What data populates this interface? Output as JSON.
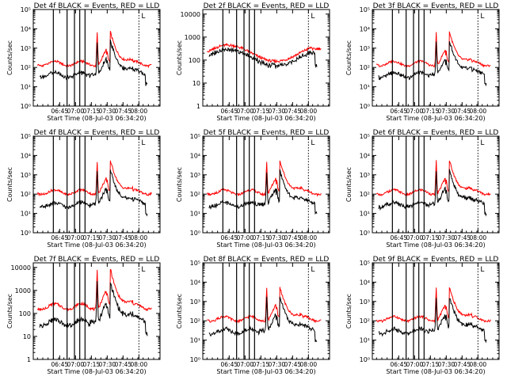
{
  "chart_data": [
    {
      "type": "line",
      "title": "Det 4f BLACK = Events, RED = LLD",
      "xlabel": "Start Time (08-Jul-03 06:34:20)",
      "ylabel": "Counts/sec",
      "ytick_labels": [
        "10⁰",
        "10¹",
        "10²",
        "10³",
        "10⁴",
        "10⁵"
      ],
      "ylim_exp": [
        0,
        5
      ],
      "xtick_labels": [
        "06:45",
        "07:00",
        "07:15",
        "07:30",
        "07:45",
        "08:00"
      ],
      "xlim_min": [
        -14,
        106
      ],
      "xtick_min": [
        11,
        26,
        41,
        56,
        71,
        86
      ],
      "marker_label": "L",
      "vlines_min": [
        5,
        18,
        25,
        30,
        35
      ],
      "dotted_min": [
        86
      ],
      "shape": "flare",
      "base": 2.2,
      "black_offset": 0.45
    },
    {
      "type": "line",
      "title": "Det 2f BLACK = Events, RED = LLD",
      "xlabel": "Start Time (08-Jul-03 06:34:20)",
      "ylabel": "Counts/sec",
      "ytick_labels": [
        "1",
        "10",
        "100",
        "1000",
        "10000"
      ],
      "ylim_exp": [
        0,
        4.2
      ],
      "xtick_labels": [
        "06:45",
        "07:00",
        "07:15",
        "07:30",
        "07:45",
        "08:00"
      ],
      "xlim_min": [
        -14,
        106
      ],
      "xtick_min": [
        11,
        26,
        41,
        56,
        71,
        86
      ],
      "marker_label": "L",
      "vlines_min": [
        5,
        18,
        25,
        30,
        35
      ],
      "dotted_min": [
        86
      ],
      "shape": "wave",
      "base": 2.3,
      "black_offset": 0.2
    },
    {
      "type": "line",
      "title": "Det 3f BLACK = Events, RED = LLD",
      "xlabel": "Start Time (08-Jul-03 06:34:20)",
      "ylabel": "Counts/sec",
      "ytick_labels": [
        "10⁰",
        "10¹",
        "10²",
        "10³",
        "10⁴",
        "10⁵"
      ],
      "ylim_exp": [
        0,
        5
      ],
      "xtick_labels": [
        "06:45",
        "07:00",
        "07:15",
        "07:30",
        "07:45",
        "08:00"
      ],
      "xlim_min": [
        -14,
        106
      ],
      "xtick_min": [
        11,
        26,
        41,
        56,
        71,
        86
      ],
      "marker_label": "L",
      "vlines_min": [
        5,
        18,
        25,
        30,
        35
      ],
      "dotted_min": [
        86
      ],
      "shape": "flare",
      "base": 2.2,
      "black_offset": 0.45
    },
    {
      "type": "line",
      "title": "Det 4f BLACK = Events, RED = LLD",
      "xlabel": "Start Time (08-Jul-03 06:34:20)",
      "ylabel": "Counts/sec",
      "ytick_labels": [
        "10⁰",
        "10¹",
        "10²",
        "10³",
        "10⁴",
        "10⁵"
      ],
      "ylim_exp": [
        0,
        5
      ],
      "xtick_labels": [
        "06:45",
        "07:00",
        "07:15",
        "07:30",
        "07:45",
        "08:00"
      ],
      "xlim_min": [
        -14,
        106
      ],
      "xtick_min": [
        11,
        26,
        41,
        56,
        71,
        86
      ],
      "marker_label": "L",
      "vlines_min": [
        5,
        18,
        25,
        30,
        35
      ],
      "dotted_min": [
        86
      ],
      "shape": "flare",
      "base": 2.1,
      "black_offset": 0.5
    },
    {
      "type": "line",
      "title": "Det 5f BLACK = Events, RED = LLD",
      "xlabel": "Start Time (08-Jul-03 06:34:20)",
      "ylabel": "Counts/sec",
      "ytick_labels": [
        "10⁰",
        "10¹",
        "10²",
        "10³",
        "10⁴",
        "10⁵"
      ],
      "ylim_exp": [
        0,
        5
      ],
      "xtick_labels": [
        "06:45",
        "07:00",
        "07:15",
        "07:30",
        "07:45",
        "08:00"
      ],
      "xlim_min": [
        -14,
        106
      ],
      "xtick_min": [
        11,
        26,
        41,
        56,
        71,
        86
      ],
      "marker_label": "L",
      "vlines_min": [
        5,
        18,
        25,
        30,
        35
      ],
      "dotted_min": [
        86
      ],
      "shape": "flare",
      "base": 2.1,
      "black_offset": 0.5
    },
    {
      "type": "line",
      "title": "Det 6f BLACK = Events, RED = LLD",
      "xlabel": "Start Time (08-Jul-03 06:34:20)",
      "ylabel": "Counts/sec",
      "ytick_labels": [
        "10⁰",
        "10¹",
        "10²",
        "10³",
        "10⁴",
        "10⁵"
      ],
      "ylim_exp": [
        0,
        5
      ],
      "xtick_labels": [
        "06:45",
        "07:00",
        "07:15",
        "07:30",
        "07:45",
        "08:00"
      ],
      "xlim_min": [
        -14,
        106
      ],
      "xtick_min": [
        11,
        26,
        41,
        56,
        71,
        86
      ],
      "marker_label": "L",
      "vlines_min": [
        5,
        18,
        25,
        30,
        35
      ],
      "dotted_min": [
        86
      ],
      "shape": "flare",
      "base": 2.1,
      "black_offset": 0.5
    },
    {
      "type": "line",
      "title": "Det 7f BLACK = Events, RED = LLD",
      "xlabel": "Start Time (08-Jul-03 06:34:20)",
      "ylabel": "Counts/sec",
      "ytick_labels": [
        "1",
        "10",
        "100",
        "1000",
        "10000"
      ],
      "ylim_exp": [
        0,
        4.2
      ],
      "xtick_labels": [
        "06:45",
        "07:00",
        "07:15",
        "07:30",
        "07:45",
        "08:00"
      ],
      "xlim_min": [
        -14,
        106
      ],
      "xtick_min": [
        11,
        26,
        41,
        56,
        71,
        86
      ],
      "marker_label": "L",
      "vlines_min": [
        5,
        18,
        25,
        30,
        35
      ],
      "dotted_min": [
        86
      ],
      "shape": "flare",
      "base": 2.3,
      "black_offset": 0.55
    },
    {
      "type": "line",
      "title": "Det 8f BLACK = Events, RED = LLD",
      "xlabel": "Start Time (08-Jul-03 06:34:20)",
      "ylabel": "Counts/sec",
      "ytick_labels": [
        "10⁰",
        "10¹",
        "10²",
        "10³",
        "10⁴",
        "10⁵"
      ],
      "ylim_exp": [
        0,
        5
      ],
      "xtick_labels": [
        "06:45",
        "07:00",
        "07:15",
        "07:30",
        "07:45",
        "08:00"
      ],
      "xlim_min": [
        -14,
        106
      ],
      "xtick_min": [
        11,
        26,
        41,
        56,
        71,
        86
      ],
      "marker_label": "L",
      "vlines_min": [
        5,
        18,
        25,
        30,
        35
      ],
      "dotted_min": [
        86
      ],
      "shape": "flare",
      "base": 2.1,
      "black_offset": 0.5
    },
    {
      "type": "line",
      "title": "Det 9f BLACK = Events, RED = LLD",
      "xlabel": "Start Time (08-Jul-03 06:34:20)",
      "ylabel": "Counts/sec",
      "ytick_labels": [
        "10⁰",
        "10¹",
        "10²",
        "10³",
        "10⁴",
        "10⁵"
      ],
      "ylim_exp": [
        0,
        5
      ],
      "xtick_labels": [
        "06:45",
        "07:00",
        "07:15",
        "07:30",
        "07:45",
        "08:00"
      ],
      "xlim_min": [
        -14,
        106
      ],
      "xtick_min": [
        11,
        26,
        41,
        56,
        71,
        86
      ],
      "marker_label": "L",
      "vlines_min": [
        5,
        18,
        25,
        30,
        35
      ],
      "dotted_min": [
        86
      ],
      "shape": "flare",
      "base": 2.1,
      "black_offset": 0.5
    }
  ],
  "colors": {
    "events": "#000000",
    "lld": "#ff0000",
    "axis": "#000000",
    "background": "#ffffff"
  }
}
